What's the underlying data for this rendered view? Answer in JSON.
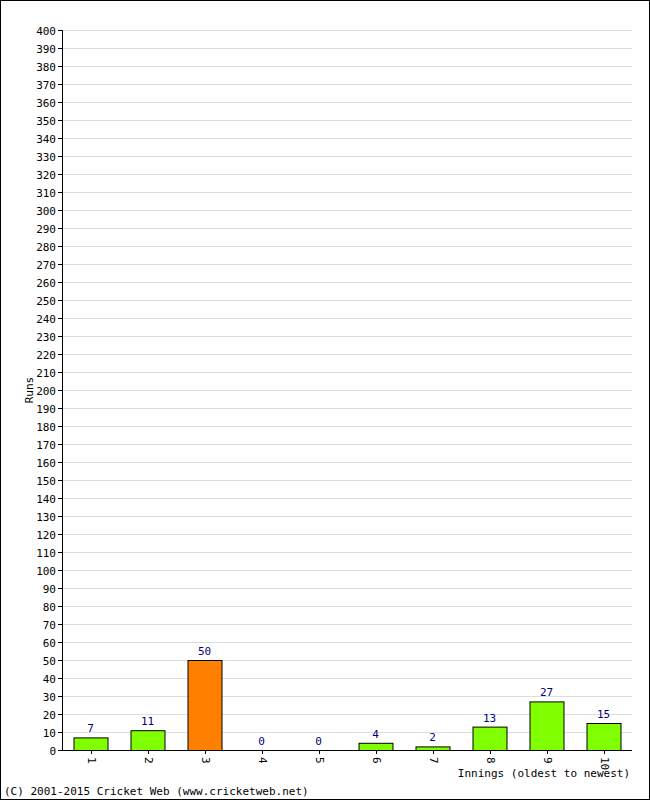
{
  "chart_data": {
    "type": "bar",
    "categories": [
      "1",
      "2",
      "3",
      "4",
      "5",
      "6",
      "7",
      "8",
      "9",
      "10"
    ],
    "values": [
      7,
      11,
      50,
      0,
      0,
      4,
      2,
      13,
      27,
      15
    ],
    "colors": [
      "#80ff00",
      "#80ff00",
      "#ff8000",
      "#80ff00",
      "#80ff00",
      "#80ff00",
      "#80ff00",
      "#80ff00",
      "#80ff00",
      "#80ff00"
    ],
    "ylim": [
      0,
      400
    ],
    "yticks": [
      0,
      10,
      20,
      30,
      40,
      50,
      60,
      70,
      80,
      90,
      100,
      110,
      120,
      130,
      140,
      150,
      160,
      170,
      180,
      190,
      200,
      210,
      220,
      230,
      240,
      250,
      260,
      270,
      280,
      290,
      300,
      310,
      320,
      330,
      340,
      350,
      360,
      370,
      380,
      390,
      400
    ],
    "grid": true,
    "data_labels": true,
    "x_label": "Innings (oldest to newest)",
    "y_label": "Runs",
    "annotations": [
      "(C) 2001-2015 Cricket Web (www.cricketweb.net)"
    ]
  }
}
